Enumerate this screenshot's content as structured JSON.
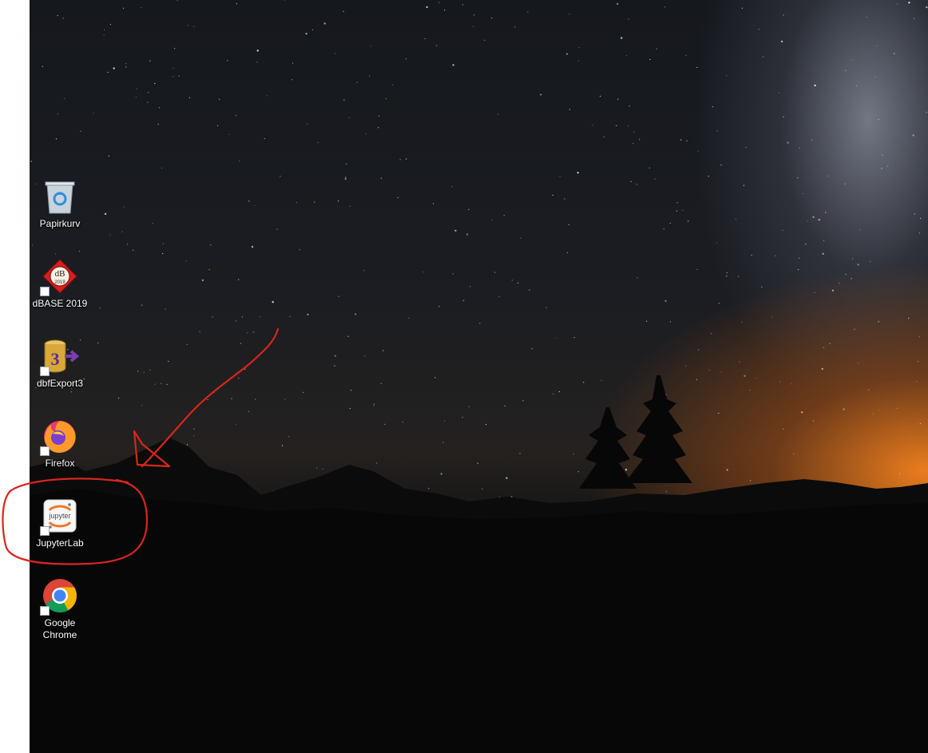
{
  "desktop": {
    "icons": [
      {
        "label": "Papirkurv",
        "icon": "recycle-bin-icon"
      },
      {
        "label": "dBASE 2019",
        "icon": "dbase-icon",
        "logo_text": "dB",
        "logo_year": "2019"
      },
      {
        "label": "dbfExport3",
        "icon": "dbfexport-icon",
        "logo_text": "3"
      },
      {
        "label": "Firefox",
        "icon": "firefox-icon"
      },
      {
        "label": "JupyterLab",
        "icon": "jupyter-icon",
        "logo_text": "jupyter"
      },
      {
        "label": "Google\nChrome",
        "icon": "chrome-icon"
      }
    ]
  },
  "annotation": {
    "color": "#d8261c",
    "highlighted_icon": "JupyterLab"
  }
}
